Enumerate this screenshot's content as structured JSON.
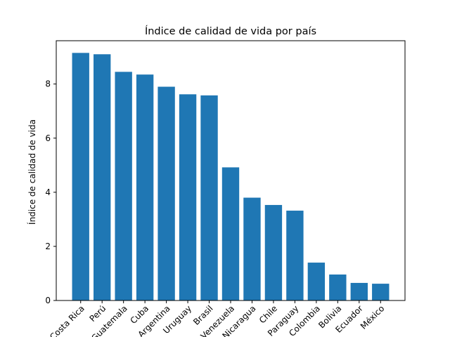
{
  "chart_data": {
    "type": "bar",
    "title": "Índice de calidad de vida por país",
    "xlabel": "",
    "ylabel": "Índice de calidad de vida",
    "ylim": [
      0,
      9.6
    ],
    "yticks": [
      0,
      2,
      4,
      6,
      8
    ],
    "color": "#1f77b4",
    "grid": false,
    "categories": [
      "Costa Rica",
      "Perú",
      "Guatemala",
      "Cuba",
      "Argentina",
      "Uruguay",
      "Brasil",
      "Venezuela",
      "Nicaragua",
      "Chile",
      "Paraguay",
      "Colombia",
      "Bolivia",
      "Ecuador",
      "México"
    ],
    "values": [
      9.15,
      9.1,
      8.45,
      8.35,
      7.9,
      7.62,
      7.58,
      4.92,
      3.8,
      3.53,
      3.32,
      1.4,
      0.96,
      0.65,
      0.62
    ]
  }
}
